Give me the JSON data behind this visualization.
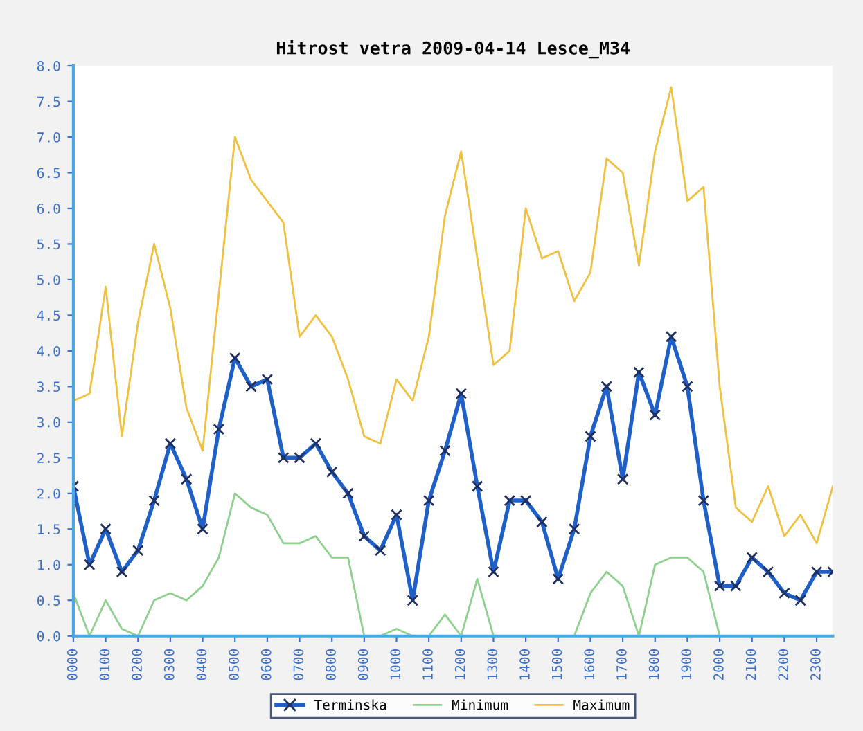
{
  "chart_data": {
    "type": "line",
    "title": "Hitrost vetra 2009-04-14 Lesce_M34",
    "categories": [
      "0000",
      null,
      "0100",
      null,
      "0200",
      null,
      "0300",
      null,
      "0400",
      null,
      "0500",
      null,
      "0600",
      null,
      "0700",
      null,
      "0800",
      null,
      "0900",
      null,
      "1000",
      null,
      "1100",
      null,
      "1200",
      null,
      "1300",
      null,
      "1400",
      null,
      "1500",
      null,
      "1600",
      null,
      "1700",
      null,
      "1800",
      null,
      "1900",
      null,
      "2000",
      null,
      "2100",
      null,
      "2200",
      null,
      "2300",
      null
    ],
    "series": [
      {
        "name": "Terminska",
        "color": "#1f5fc8",
        "marker": "cross",
        "values": [
          2.1,
          1.0,
          1.5,
          0.9,
          1.2,
          1.9,
          2.7,
          2.2,
          1.5,
          2.9,
          3.9,
          3.5,
          3.6,
          2.5,
          2.5,
          2.7,
          2.3,
          2.0,
          1.4,
          1.2,
          1.7,
          0.5,
          1.9,
          2.6,
          3.4,
          2.1,
          0.9,
          1.9,
          1.9,
          1.6,
          0.8,
          1.5,
          2.8,
          3.5,
          2.2,
          3.7,
          3.1,
          4.2,
          3.5,
          1.9,
          0.7,
          0.7,
          1.1,
          0.9,
          0.6,
          0.5,
          0.9,
          0.9
        ]
      },
      {
        "name": "Minimum",
        "color": "#8fd08f",
        "marker": "none",
        "values": [
          0.6,
          0.0,
          0.5,
          0.1,
          0.0,
          0.5,
          0.6,
          0.5,
          0.7,
          1.1,
          2.0,
          1.8,
          1.7,
          1.3,
          1.3,
          1.4,
          1.1,
          1.1,
          0.0,
          0.0,
          0.1,
          0.0,
          0.0,
          0.3,
          0.0,
          0.8,
          0.0,
          0.0,
          0.0,
          0.0,
          0.0,
          0.0,
          0.6,
          0.9,
          0.7,
          0.0,
          1.0,
          1.1,
          1.1,
          0.9,
          0.0,
          null,
          null,
          null,
          null,
          null,
          null,
          null
        ]
      },
      {
        "name": "Maximum",
        "color": "#f0c040",
        "marker": "none",
        "values": [
          3.3,
          3.4,
          4.9,
          2.8,
          4.4,
          5.5,
          4.6,
          3.2,
          2.6,
          4.8,
          7.0,
          6.4,
          6.1,
          5.8,
          4.2,
          4.5,
          4.2,
          3.6,
          2.8,
          2.7,
          3.6,
          3.3,
          4.2,
          5.9,
          6.8,
          5.3,
          3.8,
          4.0,
          6.0,
          5.3,
          5.4,
          4.7,
          5.1,
          6.7,
          6.5,
          5.2,
          6.8,
          7.7,
          6.1,
          6.3,
          3.5,
          1.8,
          1.6,
          2.1,
          1.4,
          1.7,
          1.3,
          2.1
        ]
      }
    ],
    "ylim": [
      0,
      8
    ],
    "yticks": [
      {
        "value": 0,
        "label": "0.0"
      },
      {
        "value": 0.5,
        "label": "0.5"
      },
      {
        "value": 1,
        "label": "1.0"
      },
      {
        "value": 1.5,
        "label": "1.5"
      },
      {
        "value": 2,
        "label": "2.0"
      },
      {
        "value": 2.5,
        "label": "2.5"
      },
      {
        "value": 3,
        "label": "3.0"
      },
      {
        "value": 3.5,
        "label": "3.5"
      },
      {
        "value": 4,
        "label": "4.0"
      },
      {
        "value": 4.5,
        "label": "4.5"
      },
      {
        "value": 5,
        "label": "5.0"
      },
      {
        "value": 5.5,
        "label": "5.5"
      },
      {
        "value": 6,
        "label": "6.0"
      },
      {
        "value": 6.5,
        "label": "6.5"
      },
      {
        "value": 7,
        "label": "7.0"
      },
      {
        "value": 7.5,
        "label": "7.5"
      },
      {
        "value": 8,
        "label": "8.0"
      }
    ],
    "grid": false,
    "legend": "bottom"
  }
}
